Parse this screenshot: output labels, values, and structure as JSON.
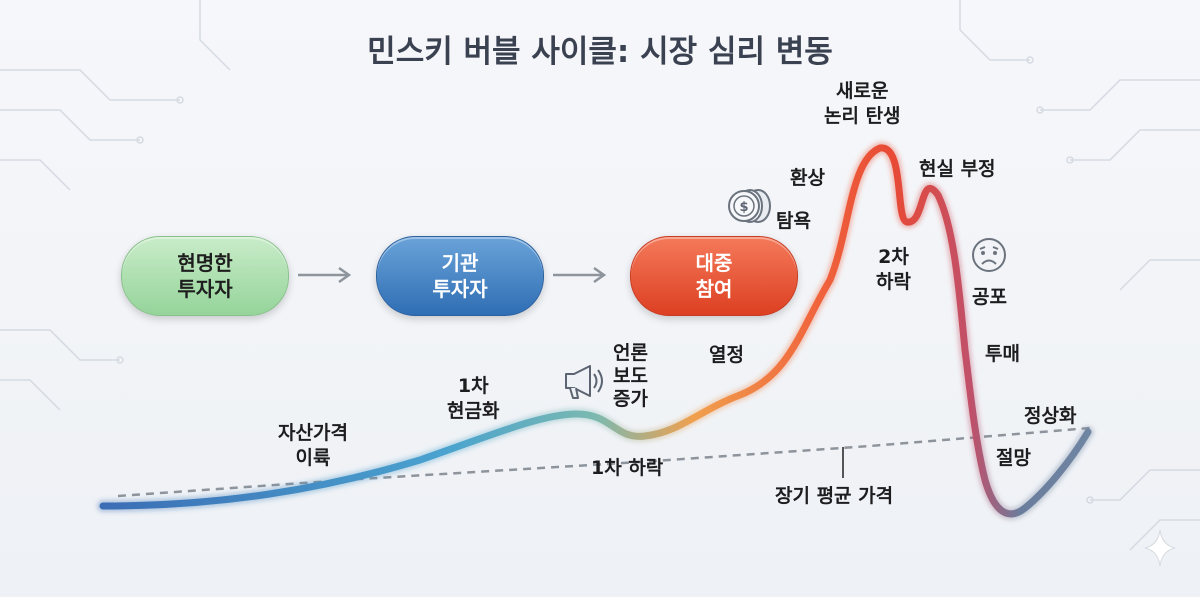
{
  "title": "민스키 버블 사이클: 시장 심리 변동",
  "participants": [
    {
      "label": "현명한\n투자자",
      "color": "#9fd7a2"
    },
    {
      "label": "기관\n투자자",
      "color": "#3f7fc3"
    },
    {
      "label": "대중\n참여",
      "color": "#e8543a"
    }
  ],
  "stages": {
    "asset_rise": "자산가격\n이륙",
    "first_cash_out": "1차\n현금화",
    "media": "언론\n보도\n증가",
    "first_drop": "1차 하락",
    "enthusiasm": "열정",
    "greed": "탐욕",
    "illusion": "환상",
    "new_paradigm": "새로운\n논리 탄생",
    "denial": "현실 부정",
    "second_drop": "2차\n하락",
    "fear": "공포",
    "capitulation": "투매",
    "despair": "절망",
    "normalization": "정상화"
  },
  "long_term_avg_label": "장기 평균 가격",
  "icons": {
    "media": "megaphone-icon",
    "greed": "coin-stack-icon",
    "fear": "worried-face-icon"
  }
}
